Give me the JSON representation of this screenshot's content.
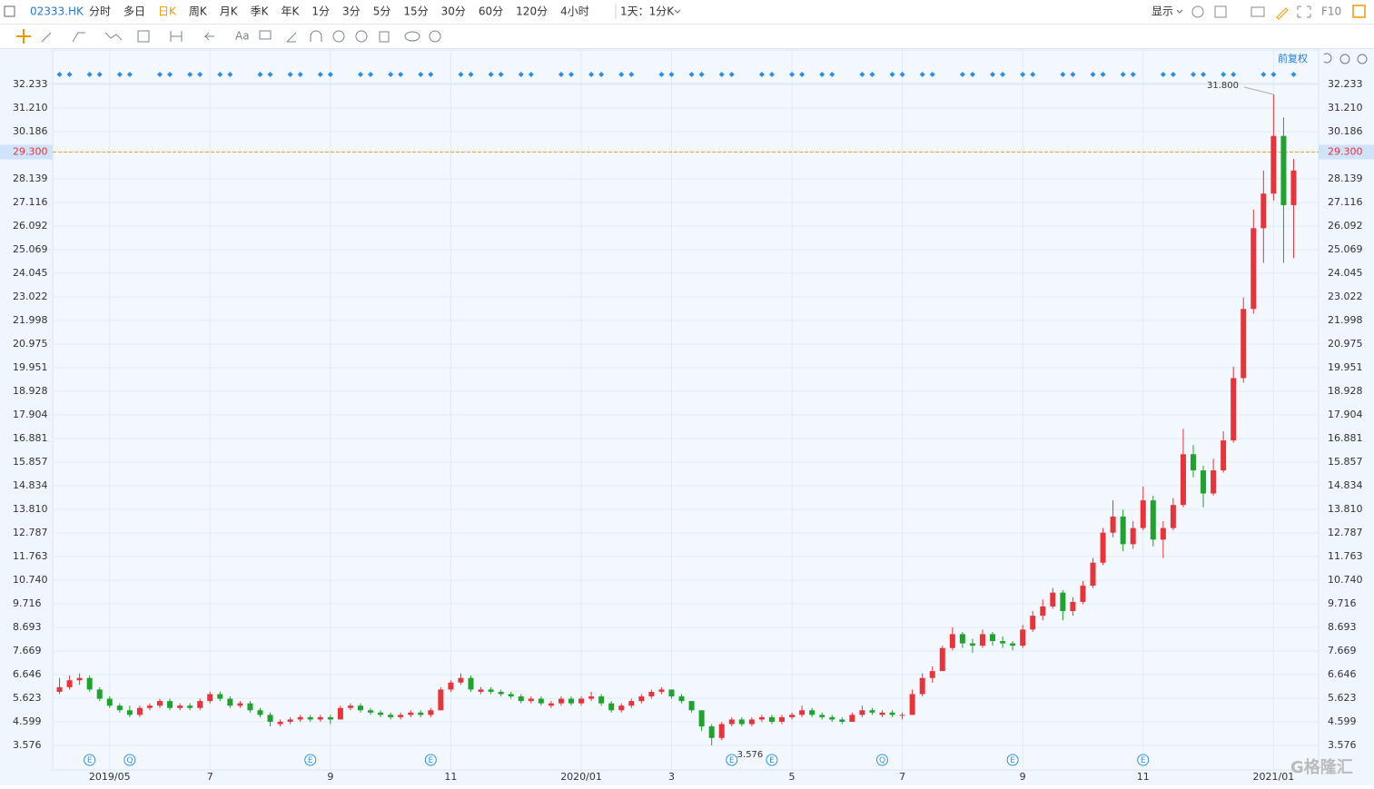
{
  "toolbar": {
    "symbol": "02333.HK",
    "periods": [
      "分时",
      "多日",
      "日K",
      "周K",
      "月K",
      "季K",
      "年K",
      "1分",
      "3分",
      "5分",
      "15分",
      "30分",
      "60分",
      "120分",
      "4小时"
    ],
    "active_period": "日K",
    "interval": "1天：1分K",
    "display": "显示",
    "f10": "F10",
    "adjust": "前复权"
  },
  "chart_data": {
    "type": "candlestick",
    "categories": [
      null,
      null,
      null,
      null,
      null,
      "2019/05",
      null,
      null,
      null,
      null,
      null,
      null,
      null,
      null,
      null,
      "7",
      null,
      null,
      null,
      null,
      null,
      null,
      null,
      null,
      null,
      null,
      null,
      "9",
      null,
      null,
      null,
      null,
      null,
      null,
      null,
      null,
      null,
      null,
      null,
      "11",
      null,
      null,
      null,
      null,
      null,
      null,
      null,
      null,
      null,
      null,
      null,
      null,
      "2020/01",
      null,
      null,
      null,
      null,
      null,
      null,
      null,
      null,
      "3",
      null,
      null,
      null,
      null,
      null,
      null,
      null,
      null,
      null,
      null,
      null,
      "5",
      null,
      null,
      null,
      null,
      null,
      null,
      null,
      null,
      null,
      null,
      "7",
      null,
      null,
      null,
      null,
      null,
      null,
      null,
      null,
      null,
      null,
      null,
      "9",
      null,
      null,
      null,
      null,
      null,
      null,
      null,
      null,
      null,
      null,
      null,
      "11",
      null,
      null,
      null,
      null,
      null,
      null,
      null,
      null,
      null,
      null,
      null,
      null,
      "2021/01",
      null,
      null
    ],
    "ohlc": [
      [
        5.9,
        6.5,
        5.8,
        6.1
      ],
      [
        6.1,
        6.6,
        6.0,
        6.4
      ],
      [
        6.4,
        6.7,
        6.2,
        6.5
      ],
      [
        6.5,
        6.6,
        5.9,
        6.0
      ],
      [
        6.0,
        6.1,
        5.5,
        5.6
      ],
      [
        5.6,
        5.7,
        5.2,
        5.3
      ],
      [
        5.3,
        5.4,
        5.0,
        5.1
      ],
      [
        5.1,
        5.3,
        4.8,
        4.9
      ],
      [
        4.9,
        5.3,
        4.8,
        5.2
      ],
      [
        5.2,
        5.4,
        5.1,
        5.3
      ],
      [
        5.3,
        5.6,
        5.2,
        5.5
      ],
      [
        5.5,
        5.6,
        5.1,
        5.2
      ],
      [
        5.2,
        5.4,
        5.1,
        5.3
      ],
      [
        5.3,
        5.4,
        5.1,
        5.2
      ],
      [
        5.2,
        5.6,
        5.1,
        5.5
      ],
      [
        5.5,
        5.9,
        5.4,
        5.8
      ],
      [
        5.8,
        5.9,
        5.5,
        5.6
      ],
      [
        5.6,
        5.7,
        5.2,
        5.3
      ],
      [
        5.3,
        5.5,
        5.2,
        5.4
      ],
      [
        5.4,
        5.5,
        5.0,
        5.1
      ],
      [
        5.1,
        5.2,
        4.8,
        4.9
      ],
      [
        4.9,
        5.0,
        4.4,
        4.6
      ],
      [
        4.5,
        4.7,
        4.4,
        4.6
      ],
      [
        4.6,
        4.8,
        4.5,
        4.7
      ],
      [
        4.7,
        4.9,
        4.6,
        4.8
      ],
      [
        4.8,
        4.9,
        4.6,
        4.7
      ],
      [
        4.7,
        4.9,
        4.6,
        4.8
      ],
      [
        4.8,
        4.9,
        4.5,
        4.7
      ],
      [
        4.7,
        5.3,
        4.7,
        5.2
      ],
      [
        5.2,
        5.4,
        5.1,
        5.3
      ],
      [
        5.3,
        5.4,
        5.0,
        5.1
      ],
      [
        5.1,
        5.2,
        4.9,
        5.0
      ],
      [
        5.0,
        5.1,
        4.8,
        4.9
      ],
      [
        4.9,
        5.0,
        4.7,
        4.8
      ],
      [
        4.8,
        5.0,
        4.7,
        4.9
      ],
      [
        4.9,
        5.1,
        4.8,
        5.0
      ],
      [
        5.0,
        5.1,
        4.8,
        4.9
      ],
      [
        4.9,
        5.2,
        4.8,
        5.1
      ],
      [
        5.1,
        6.1,
        5.1,
        6.0
      ],
      [
        6.0,
        6.4,
        5.9,
        6.3
      ],
      [
        6.3,
        6.7,
        6.2,
        6.5
      ],
      [
        6.5,
        6.6,
        5.9,
        6.0
      ],
      [
        5.9,
        6.1,
        5.8,
        6.0
      ],
      [
        6.0,
        6.1,
        5.8,
        5.9
      ],
      [
        5.9,
        6.0,
        5.7,
        5.8
      ],
      [
        5.8,
        5.9,
        5.6,
        5.7
      ],
      [
        5.7,
        5.8,
        5.4,
        5.5
      ],
      [
        5.5,
        5.7,
        5.4,
        5.6
      ],
      [
        5.6,
        5.7,
        5.3,
        5.4
      ],
      [
        5.3,
        5.5,
        5.2,
        5.4
      ],
      [
        5.4,
        5.7,
        5.3,
        5.6
      ],
      [
        5.6,
        5.7,
        5.3,
        5.4
      ],
      [
        5.4,
        5.7,
        5.3,
        5.6
      ],
      [
        5.6,
        5.9,
        5.5,
        5.7
      ],
      [
        5.7,
        5.8,
        5.3,
        5.4
      ],
      [
        5.4,
        5.5,
        5.0,
        5.1
      ],
      [
        5.1,
        5.4,
        5.0,
        5.3
      ],
      [
        5.3,
        5.6,
        5.2,
        5.5
      ],
      [
        5.5,
        5.8,
        5.4,
        5.7
      ],
      [
        5.7,
        6.0,
        5.6,
        5.9
      ],
      [
        5.9,
        6.1,
        5.8,
        6.0
      ],
      [
        6.0,
        6.0,
        5.6,
        5.7
      ],
      [
        5.7,
        5.8,
        5.4,
        5.5
      ],
      [
        5.5,
        5.5,
        5.0,
        5.1
      ],
      [
        5.1,
        5.1,
        4.2,
        4.4
      ],
      [
        4.4,
        4.5,
        3.576,
        3.9
      ],
      [
        3.9,
        4.6,
        3.8,
        4.5
      ],
      [
        4.5,
        4.8,
        4.4,
        4.7
      ],
      [
        4.7,
        4.8,
        4.4,
        4.5
      ],
      [
        4.5,
        4.8,
        4.4,
        4.7
      ],
      [
        4.7,
        4.9,
        4.6,
        4.8
      ],
      [
        4.8,
        4.9,
        4.5,
        4.6
      ],
      [
        4.6,
        4.9,
        4.5,
        4.8
      ],
      [
        4.8,
        5.0,
        4.7,
        4.9
      ],
      [
        4.9,
        5.3,
        4.8,
        5.1
      ],
      [
        5.1,
        5.2,
        4.8,
        4.9
      ],
      [
        4.9,
        5.0,
        4.7,
        4.8
      ],
      [
        4.8,
        4.9,
        4.6,
        4.7
      ],
      [
        4.7,
        4.8,
        4.5,
        4.6
      ],
      [
        4.6,
        5.0,
        4.6,
        4.9
      ],
      [
        4.9,
        5.3,
        4.8,
        5.1
      ],
      [
        5.1,
        5.2,
        4.9,
        5.0
      ],
      [
        4.9,
        5.1,
        4.8,
        5.0
      ],
      [
        5.0,
        5.1,
        4.8,
        4.9
      ],
      [
        4.9,
        5.0,
        4.7,
        4.9
      ],
      [
        4.9,
        6.0,
        4.9,
        5.8
      ],
      [
        5.8,
        6.7,
        5.7,
        6.5
      ],
      [
        6.5,
        7.0,
        6.3,
        6.8
      ],
      [
        6.8,
        7.9,
        6.8,
        7.8
      ],
      [
        7.8,
        8.7,
        7.7,
        8.4
      ],
      [
        8.4,
        8.5,
        7.8,
        8.0
      ],
      [
        8.0,
        8.2,
        7.6,
        7.9
      ],
      [
        7.9,
        8.6,
        7.8,
        8.4
      ],
      [
        8.4,
        8.5,
        7.9,
        8.1
      ],
      [
        8.1,
        8.3,
        7.8,
        8.0
      ],
      [
        8.0,
        8.1,
        7.7,
        7.9
      ],
      [
        7.9,
        8.8,
        7.8,
        8.6
      ],
      [
        8.6,
        9.4,
        8.5,
        9.2
      ],
      [
        9.2,
        9.9,
        9.0,
        9.6
      ],
      [
        9.6,
        10.4,
        9.5,
        10.2
      ],
      [
        10.2,
        10.3,
        9.0,
        9.4
      ],
      [
        9.4,
        10.0,
        9.2,
        9.8
      ],
      [
        9.8,
        10.7,
        9.7,
        10.5
      ],
      [
        10.5,
        11.7,
        10.4,
        11.5
      ],
      [
        11.5,
        13.0,
        11.4,
        12.8
      ],
      [
        12.8,
        14.2,
        12.6,
        13.5
      ],
      [
        13.5,
        13.8,
        12.0,
        12.3
      ],
      [
        12.3,
        13.3,
        12.1,
        13.0
      ],
      [
        13.0,
        14.8,
        12.9,
        14.2
      ],
      [
        14.2,
        14.4,
        12.2,
        12.5
      ],
      [
        12.5,
        13.3,
        11.7,
        13.0
      ],
      [
        13.0,
        14.3,
        12.9,
        14.0
      ],
      [
        14.0,
        17.3,
        13.9,
        16.2
      ],
      [
        16.2,
        16.6,
        15.2,
        15.5
      ],
      [
        15.5,
        15.7,
        13.9,
        14.5
      ],
      [
        14.5,
        16.0,
        14.4,
        15.5
      ],
      [
        15.5,
        17.2,
        15.4,
        16.8
      ],
      [
        16.8,
        20.0,
        16.7,
        19.5
      ],
      [
        19.5,
        23.0,
        19.3,
        22.5
      ],
      [
        22.5,
        26.8,
        22.3,
        26.0
      ],
      [
        26.0,
        28.5,
        24.5,
        27.5
      ],
      [
        27.5,
        31.8,
        27.2,
        30.0
      ],
      [
        30.0,
        30.8,
        24.5,
        27.0
      ],
      [
        27.0,
        29.0,
        24.7,
        28.5
      ]
    ],
    "up_color": "#e8333a",
    "down_color": "#1fa32c",
    "event_markers": [
      null,
      null,
      null,
      "E",
      null,
      null,
      null,
      "Q",
      null,
      null,
      null,
      null,
      null,
      null,
      null,
      null,
      null,
      null,
      null,
      null,
      null,
      null,
      null,
      null,
      null,
      "E",
      null,
      null,
      null,
      null,
      null,
      null,
      null,
      null,
      null,
      null,
      null,
      "E",
      null,
      null,
      null,
      null,
      null,
      null,
      null,
      null,
      null,
      null,
      null,
      null,
      null,
      null,
      null,
      null,
      null,
      null,
      null,
      null,
      null,
      null,
      null,
      null,
      null,
      null,
      null,
      null,
      null,
      "E",
      null,
      null,
      null,
      "E",
      null,
      null,
      null,
      null,
      null,
      null,
      null,
      null,
      null,
      null,
      "Q",
      null,
      null,
      null,
      null,
      null,
      null,
      null,
      null,
      null,
      null,
      null,
      null,
      "E",
      null,
      null,
      null,
      null,
      null,
      null,
      null,
      null,
      null,
      null,
      null,
      null,
      "E",
      null,
      null,
      null,
      null,
      null,
      null,
      null,
      null,
      null,
      null,
      null,
      null,
      null,
      null,
      null
    ],
    "high_annotation": {
      "value": 31.8,
      "label": "31.800"
    },
    "low_annotation": 3.576,
    "crosshair": {
      "value": 29.3,
      "label": "29.300"
    },
    "ylim": [
      2.513,
      33.729
    ],
    "yticks": [
      3.576,
      4.599,
      5.623,
      6.646,
      7.669,
      8.693,
      9.716,
      {
        "value": 10.74,
        "label": "10.740"
      },
      11.763,
      12.787,
      {
        "value": 13.81,
        "label": "13.810"
      },
      14.834,
      15.857,
      16.881,
      17.904,
      18.928,
      19.951,
      20.975,
      21.998,
      23.022,
      24.045,
      25.069,
      26.092,
      27.116,
      28.139,
      30.186,
      {
        "value": 31.21,
        "label": "31.210"
      },
      32.233
    ],
    "grid": true
  }
}
